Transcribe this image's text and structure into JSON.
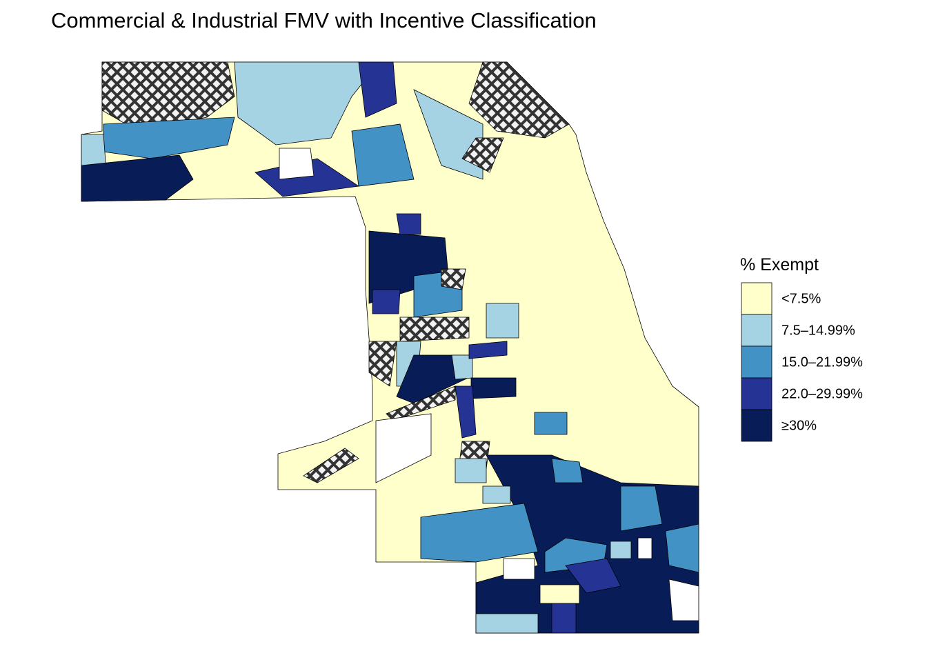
{
  "title": "Commercial & Industrial FMV with Incentive Classification",
  "legend": {
    "title": "% Exempt",
    "items": [
      {
        "label": "<7.5%",
        "color": "#ffffcc"
      },
      {
        "label": "7.5–14.99%",
        "color": "#a6d3e3"
      },
      {
        "label": "15.0–21.99%",
        "color": "#4292c6"
      },
      {
        "label": "22.0–29.99%",
        "color": "#253494"
      },
      {
        "label": "≥30%",
        "color": "#081d58"
      }
    ]
  }
}
